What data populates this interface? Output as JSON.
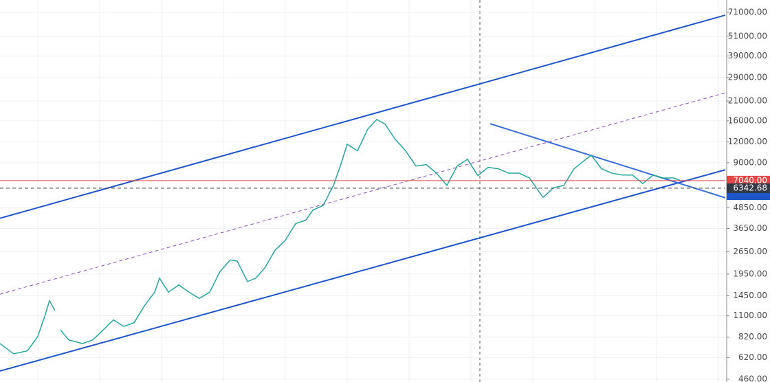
{
  "chart_data": {
    "type": "line",
    "log_scale": true,
    "grid": true,
    "color": "#26a69a",
    "xlim": [
      0,
      1055
    ],
    "x": [
      0,
      20,
      40,
      55,
      65,
      72,
      80,
      82,
      88,
      100,
      120,
      135,
      150,
      165,
      180,
      195,
      210,
      225,
      232,
      245,
      260,
      275,
      290,
      305,
      320,
      335,
      345,
      360,
      372,
      385,
      400,
      415,
      430,
      445,
      455,
      470,
      485,
      495,
      505,
      520,
      535,
      548,
      560,
      575,
      590,
      605,
      620,
      635,
      650,
      665,
      680,
      695,
      710,
      725,
      740,
      755,
      770,
      785,
      790,
      805,
      820,
      835,
      850,
      860,
      875,
      890,
      905,
      920,
      935,
      950,
      965,
      980,
      990
    ],
    "values": [
      751,
      652,
      680,
      830,
      1090,
      1355,
      1180,
      null,
      905,
      790,
      751,
      790,
      905,
      1040,
      950,
      1000,
      1260,
      1520,
      1845,
      1520,
      1680,
      1520,
      1395,
      1520,
      2020,
      2370,
      2330,
      1760,
      1845,
      2120,
      2700,
      3100,
      3900,
      4100,
      4690,
      5000,
      6590,
      8600,
      11600,
      10600,
      14300,
      16300,
      15300,
      12400,
      10600,
      8600,
      8780,
      7800,
      6590,
      8600,
      9440,
      7530,
      8450,
      8280,
      7800,
      7800,
      7300,
      5970,
      5590,
      6380,
      6590,
      8280,
      9280,
      9980,
      8280,
      7800,
      7600,
      7600,
      6760,
      7600,
      7300,
      7300,
      7040
    ],
    "ylim": [
      443,
      84100
    ],
    "yticks": [
      {
        "value": 460,
        "label": "460.00"
      },
      {
        "value": 620,
        "label": "620.00"
      },
      {
        "value": 820,
        "label": "820.00"
      },
      {
        "value": 1100,
        "label": "1100.00"
      },
      {
        "value": 1450,
        "label": "1450.00"
      },
      {
        "value": 1950,
        "label": "1950.00"
      },
      {
        "value": 2650,
        "label": "2650.00"
      },
      {
        "value": 3650,
        "label": "3650.00"
      },
      {
        "value": 4850,
        "label": "4850.00"
      },
      {
        "value": 9000,
        "label": "9000.00"
      },
      {
        "value": 12000,
        "label": "12000.00"
      },
      {
        "value": 16000,
        "label": "16000.00"
      },
      {
        "value": 21000,
        "label": "21000.00"
      },
      {
        "value": 29000,
        "label": "29000.00"
      },
      {
        "value": 39000,
        "label": "39000.00"
      },
      {
        "value": 51000,
        "label": "51000.00"
      },
      {
        "value": 71000,
        "label": "71000.00"
      }
    ],
    "trend_lines": [
      {
        "color": "#1e56c8",
        "dashed": false,
        "x": [
          0,
          1055
        ],
        "y": [
          4200,
          68300
        ]
      },
      {
        "color": "#1e56c8",
        "dashed": false,
        "x": [
          0,
          1055
        ],
        "y": [
          515,
          8170
        ]
      },
      {
        "color": "#8a4fb0",
        "dashed": true,
        "x": [
          0,
          1055
        ],
        "y": [
          1480,
          23500
        ]
      },
      {
        "color": "#3a6fd8",
        "dashed": false,
        "x": [
          713,
          1055
        ],
        "y": [
          15370,
          5560
        ]
      }
    ],
    "price_lines": [
      {
        "value": 7040,
        "label": "7040.00",
        "color": "#e04848"
      },
      {
        "value": 6342.68,
        "label": "6342.68",
        "color": "#333a45"
      }
    ]
  }
}
